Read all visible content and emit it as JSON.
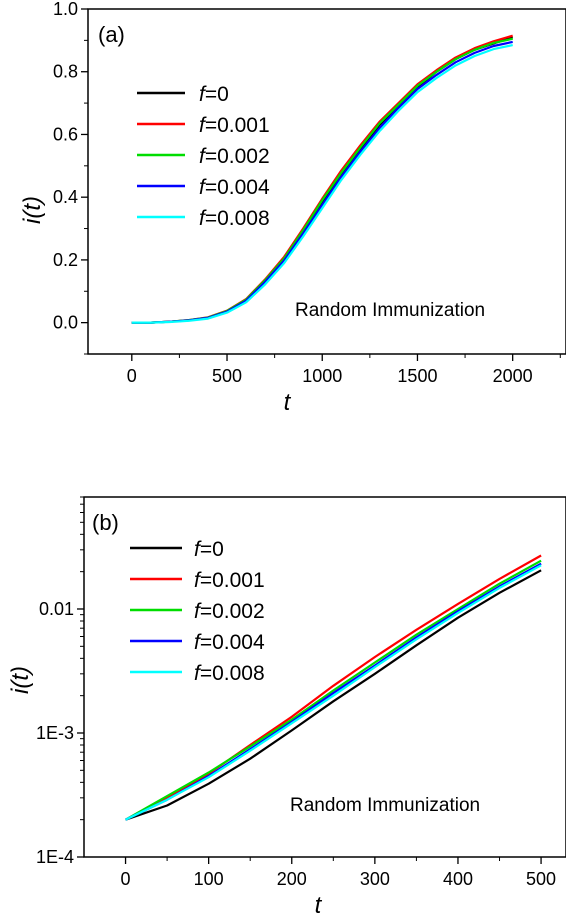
{
  "chart_data": [
    {
      "type": "line",
      "panel_label": "(a)",
      "xlabel": "t",
      "ylabel": "i(t)",
      "xlim": [
        -230,
        2280
      ],
      "ylim": [
        -0.1,
        1.0
      ],
      "xticks": [
        "0",
        "500",
        "1000",
        "1500",
        "2000"
      ],
      "yticks": [
        "0.0",
        "0.2",
        "0.4",
        "0.6",
        "0.8",
        "1.0"
      ],
      "annotation": "Random Immunization",
      "legend_position": "upper-left",
      "grid": false,
      "series": [
        {
          "name": "f=0",
          "name_parts": [
            "f",
            "=0"
          ],
          "color": "#000000",
          "x": [
            0,
            100,
            200,
            300,
            400,
            500,
            600,
            700,
            800,
            900,
            1000,
            1100,
            1200,
            1300,
            1400,
            1500,
            1600,
            1700,
            1800,
            1900,
            2000
          ],
          "y": [
            0.0,
            0.0,
            0.003,
            0.007,
            0.015,
            0.035,
            0.07,
            0.13,
            0.2,
            0.29,
            0.38,
            0.47,
            0.55,
            0.63,
            0.69,
            0.75,
            0.8,
            0.84,
            0.87,
            0.89,
            0.91
          ]
        },
        {
          "name": "f=0.001",
          "name_parts": [
            "f",
            "=0.001"
          ],
          "color": "#ff0000",
          "x": [
            0,
            100,
            200,
            300,
            400,
            500,
            600,
            700,
            800,
            900,
            1000,
            1100,
            1200,
            1300,
            1400,
            1500,
            1600,
            1700,
            1800,
            1900,
            2000
          ],
          "y": [
            0.0,
            0.0,
            0.003,
            0.008,
            0.017,
            0.038,
            0.075,
            0.138,
            0.21,
            0.3,
            0.395,
            0.485,
            0.565,
            0.64,
            0.7,
            0.76,
            0.805,
            0.845,
            0.875,
            0.897,
            0.915
          ]
        },
        {
          "name": "f=0.002",
          "name_parts": [
            "f",
            "=0.002"
          ],
          "color": "#00dd00",
          "x": [
            0,
            100,
            200,
            300,
            400,
            500,
            600,
            700,
            800,
            900,
            1000,
            1100,
            1200,
            1300,
            1400,
            1500,
            1600,
            1700,
            1800,
            1900,
            2000
          ],
          "y": [
            0.0,
            0.0,
            0.003,
            0.008,
            0.016,
            0.037,
            0.073,
            0.135,
            0.205,
            0.295,
            0.39,
            0.478,
            0.558,
            0.635,
            0.695,
            0.755,
            0.8,
            0.84,
            0.87,
            0.892,
            0.905
          ]
        },
        {
          "name": "f=0.004",
          "name_parts": [
            "f",
            "=0.004"
          ],
          "color": "#0000ff",
          "x": [
            0,
            100,
            200,
            300,
            400,
            500,
            600,
            700,
            800,
            900,
            1000,
            1100,
            1200,
            1300,
            1400,
            1500,
            1600,
            1700,
            1800,
            1900,
            2000
          ],
          "y": [
            0.0,
            0.0,
            0.003,
            0.007,
            0.015,
            0.035,
            0.07,
            0.13,
            0.198,
            0.285,
            0.375,
            0.465,
            0.545,
            0.62,
            0.685,
            0.745,
            0.79,
            0.83,
            0.86,
            0.882,
            0.895
          ]
        },
        {
          "name": "f=0.008",
          "name_parts": [
            "f",
            "=0.008"
          ],
          "color": "#00ffff",
          "x": [
            0,
            100,
            200,
            300,
            400,
            500,
            600,
            700,
            800,
            900,
            1000,
            1100,
            1200,
            1300,
            1400,
            1500,
            1600,
            1700,
            1800,
            1900,
            2000
          ],
          "y": [
            0.0,
            0.0,
            0.002,
            0.006,
            0.013,
            0.032,
            0.065,
            0.122,
            0.19,
            0.275,
            0.365,
            0.455,
            0.535,
            0.61,
            0.675,
            0.735,
            0.78,
            0.82,
            0.85,
            0.872,
            0.885
          ]
        }
      ]
    },
    {
      "type": "line",
      "panel_label": "(b)",
      "xlabel": "t",
      "ylabel": "i(t)",
      "xlim": [
        -50,
        530
      ],
      "ylim": [
        0.0001,
        0.08
      ],
      "yscale": "log",
      "xticks": [
        "0",
        "100",
        "200",
        "300",
        "400",
        "500"
      ],
      "yticks": [
        "1E-4",
        "1E-3",
        "0.01"
      ],
      "annotation": "Random Immunization",
      "legend_position": "upper-left",
      "grid": false,
      "series": [
        {
          "name": "f=0",
          "name_parts": [
            "f",
            "=0"
          ],
          "color": "#000000",
          "x": [
            0,
            50,
            100,
            150,
            200,
            250,
            300,
            350,
            400,
            450,
            500
          ],
          "y": [
            0.0002,
            0.00026,
            0.00039,
            0.00062,
            0.00105,
            0.0018,
            0.003,
            0.0051,
            0.0085,
            0.0135,
            0.0205
          ]
        },
        {
          "name": "f=0.001",
          "name_parts": [
            "f",
            "=0.001"
          ],
          "color": "#ff0000",
          "x": [
            0,
            50,
            100,
            150,
            200,
            250,
            300,
            350,
            400,
            450,
            500
          ],
          "y": [
            0.0002,
            0.0003,
            0.00047,
            0.0008,
            0.00135,
            0.0024,
            0.0041,
            0.0068,
            0.011,
            0.0175,
            0.027
          ]
        },
        {
          "name": "f=0.002",
          "name_parts": [
            "f",
            "=0.002"
          ],
          "color": "#00dd00",
          "x": [
            0,
            50,
            100,
            150,
            200,
            250,
            300,
            350,
            400,
            450,
            500
          ],
          "y": [
            0.0002,
            0.00031,
            0.00048,
            0.00078,
            0.00128,
            0.0022,
            0.0037,
            0.0062,
            0.01,
            0.016,
            0.0245
          ]
        },
        {
          "name": "f=0.004",
          "name_parts": [
            "f",
            "=0.004"
          ],
          "color": "#0000ff",
          "x": [
            0,
            50,
            100,
            150,
            200,
            250,
            300,
            350,
            400,
            450,
            500
          ],
          "y": [
            0.0002,
            0.00029,
            0.00045,
            0.00074,
            0.00123,
            0.0021,
            0.0035,
            0.0059,
            0.0096,
            0.0152,
            0.0232
          ]
        },
        {
          "name": "f=0.008",
          "name_parts": [
            "f",
            "=0.008"
          ],
          "color": "#00ffff",
          "x": [
            0,
            50,
            100,
            150,
            200,
            250,
            300,
            350,
            400,
            450,
            500
          ],
          "y": [
            0.0002,
            0.00029,
            0.00044,
            0.00072,
            0.0012,
            0.002,
            0.0034,
            0.0057,
            0.0093,
            0.0148,
            0.0225
          ]
        }
      ]
    }
  ]
}
